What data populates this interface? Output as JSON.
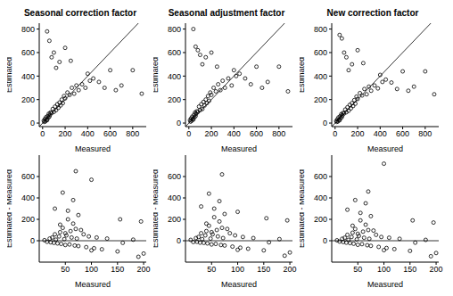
{
  "chart_data": [
    {
      "type": "scatter",
      "title": "Seasonal correction factor",
      "x_label": "Measured",
      "y_label": "Estimated",
      "x": [
        10,
        15,
        20,
        25,
        30,
        35,
        40,
        45,
        50,
        55,
        60,
        65,
        70,
        80,
        90,
        100,
        110,
        120,
        130,
        140,
        150,
        160,
        170,
        180,
        190,
        200,
        220,
        240,
        260,
        280,
        300,
        320,
        350,
        380,
        400,
        420,
        450,
        500,
        550,
        600,
        650,
        700,
        800,
        880,
        40,
        60,
        80,
        100,
        120,
        150,
        200,
        250
      ],
      "values": [
        20,
        10,
        35,
        15,
        50,
        30,
        25,
        60,
        45,
        80,
        55,
        70,
        90,
        85,
        120,
        95,
        140,
        110,
        160,
        130,
        175,
        150,
        200,
        170,
        230,
        210,
        260,
        240,
        300,
        250,
        320,
        280,
        330,
        300,
        420,
        360,
        380,
        350,
        300,
        450,
        280,
        320,
        450,
        250,
        780,
        700,
        560,
        600,
        470,
        520,
        640,
        530
      ],
      "xlim": [
        -30,
        920
      ],
      "ylim": [
        -30,
        850
      ],
      "xticks": [
        0,
        200,
        400,
        600,
        800
      ],
      "yticks": [
        0,
        200,
        400,
        600,
        800
      ],
      "color": "#000000",
      "marker": "open_circle",
      "grid": false
    },
    {
      "type": "scatter",
      "title": "Seasonal adjustment factor",
      "x_label": "Measured",
      "y_label": "Estimated",
      "x": [
        10,
        15,
        20,
        25,
        30,
        35,
        40,
        45,
        50,
        55,
        60,
        65,
        70,
        80,
        90,
        100,
        110,
        120,
        130,
        140,
        150,
        160,
        170,
        180,
        190,
        200,
        220,
        240,
        260,
        280,
        300,
        320,
        350,
        380,
        400,
        420,
        450,
        500,
        550,
        600,
        650,
        700,
        800,
        880,
        40,
        60,
        80,
        100,
        120,
        150,
        200,
        250
      ],
      "values": [
        25,
        12,
        40,
        20,
        55,
        35,
        30,
        70,
        50,
        90,
        60,
        80,
        100,
        95,
        140,
        110,
        160,
        120,
        180,
        150,
        200,
        170,
        230,
        190,
        260,
        240,
        300,
        270,
        330,
        280,
        360,
        300,
        380,
        320,
        450,
        400,
        420,
        380,
        330,
        480,
        300,
        350,
        480,
        270,
        800,
        650,
        620,
        580,
        500,
        560,
        600,
        480
      ],
      "xlim": [
        -30,
        920
      ],
      "ylim": [
        -30,
        850
      ],
      "xticks": [
        0,
        200,
        400,
        600,
        800
      ],
      "yticks": [
        0,
        200,
        400,
        600,
        800
      ],
      "color": "#000000",
      "marker": "open_circle",
      "grid": false
    },
    {
      "type": "scatter",
      "title": "New correction factor",
      "x_label": "Measured",
      "y_label": "Estimated",
      "x": [
        10,
        15,
        20,
        25,
        30,
        35,
        40,
        45,
        50,
        55,
        60,
        65,
        70,
        80,
        90,
        100,
        110,
        120,
        130,
        140,
        150,
        160,
        170,
        180,
        190,
        200,
        220,
        240,
        260,
        280,
        300,
        320,
        350,
        380,
        400,
        420,
        450,
        500,
        550,
        600,
        650,
        700,
        800,
        880,
        40,
        60,
        80,
        100,
        120,
        150,
        200,
        250
      ],
      "values": [
        18,
        10,
        32,
        14,
        48,
        28,
        24,
        58,
        42,
        76,
        52,
        66,
        86,
        82,
        115,
        92,
        135,
        105,
        155,
        125,
        170,
        145,
        195,
        165,
        225,
        205,
        255,
        235,
        290,
        245,
        310,
        275,
        320,
        295,
        410,
        350,
        370,
        345,
        290,
        440,
        275,
        310,
        440,
        245,
        750,
        720,
        600,
        560,
        450,
        500,
        620,
        510
      ],
      "xlim": [
        -30,
        920
      ],
      "ylim": [
        -30,
        850
      ],
      "xticks": [
        0,
        200,
        400,
        600,
        800
      ],
      "yticks": [
        0,
        200,
        400,
        600,
        800
      ],
      "color": "#000000",
      "marker": "open_circle",
      "grid": false
    },
    {
      "type": "scatter",
      "x_label": "Measured",
      "y_label": "Estimated - Measured",
      "x": [
        10,
        15,
        20,
        22,
        25,
        28,
        30,
        32,
        35,
        38,
        40,
        42,
        45,
        48,
        50,
        52,
        55,
        58,
        60,
        62,
        65,
        68,
        70,
        72,
        75,
        80,
        85,
        90,
        95,
        100,
        105,
        110,
        120,
        130,
        150,
        155,
        160,
        180,
        190,
        195,
        200,
        45,
        55,
        65,
        70,
        75,
        100,
        30,
        40,
        50
      ],
      "values": [
        5,
        -10,
        20,
        -15,
        30,
        -20,
        60,
        10,
        -25,
        40,
        80,
        -30,
        120,
        15,
        -40,
        50,
        200,
        -35,
        90,
        30,
        160,
        -45,
        650,
        20,
        -50,
        100,
        60,
        -60,
        40,
        570,
        -70,
        30,
        -80,
        20,
        -100,
        200,
        -20,
        10,
        -150,
        180,
        -120,
        450,
        280,
        380,
        110,
        240,
        -90,
        300,
        150,
        70
      ],
      "xlim": [
        0,
        205
      ],
      "ylim": [
        -200,
        800
      ],
      "xticks": [
        50,
        100,
        150,
        200
      ],
      "yticks": [
        0,
        200,
        400,
        600
      ],
      "color": "#000000",
      "marker": "open_circle",
      "grid": false
    },
    {
      "type": "scatter",
      "x_label": "Measured",
      "y_label": "Estimated - Measured",
      "x": [
        10,
        15,
        20,
        22,
        25,
        28,
        30,
        32,
        35,
        38,
        40,
        42,
        45,
        48,
        50,
        52,
        55,
        58,
        60,
        62,
        65,
        68,
        70,
        72,
        75,
        80,
        85,
        90,
        95,
        100,
        105,
        110,
        120,
        130,
        150,
        155,
        160,
        180,
        190,
        195,
        200,
        45,
        55,
        65,
        70,
        75,
        100,
        30,
        40,
        50
      ],
      "values": [
        8,
        -12,
        25,
        -10,
        35,
        -18,
        70,
        15,
        -20,
        50,
        90,
        -25,
        140,
        20,
        -35,
        60,
        220,
        -30,
        100,
        40,
        180,
        -40,
        620,
        25,
        -45,
        110,
        70,
        -55,
        50,
        270,
        -65,
        35,
        -75,
        25,
        -90,
        210,
        -15,
        15,
        -140,
        190,
        -110,
        440,
        300,
        370,
        120,
        250,
        -85,
        320,
        160,
        80
      ],
      "xlim": [
        0,
        205
      ],
      "ylim": [
        -200,
        800
      ],
      "xticks": [
        50,
        100,
        150,
        200
      ],
      "yticks": [
        0,
        200,
        400,
        600
      ],
      "color": "#000000",
      "marker": "open_circle",
      "grid": false
    },
    {
      "type": "scatter",
      "x_label": "Measured",
      "y_label": "Estimated - Measured",
      "x": [
        10,
        15,
        20,
        22,
        25,
        28,
        30,
        32,
        35,
        38,
        40,
        42,
        45,
        48,
        50,
        52,
        55,
        58,
        60,
        62,
        65,
        68,
        70,
        72,
        75,
        80,
        85,
        90,
        95,
        100,
        105,
        110,
        120,
        130,
        150,
        155,
        160,
        180,
        190,
        195,
        200,
        45,
        55,
        65,
        70,
        75,
        100,
        30,
        40,
        50
      ],
      "values": [
        4,
        -8,
        18,
        -12,
        28,
        -18,
        55,
        8,
        -22,
        35,
        75,
        -28,
        110,
        12,
        -38,
        45,
        190,
        -32,
        85,
        28,
        150,
        -42,
        460,
        18,
        -48,
        95,
        55,
        -58,
        35,
        720,
        -68,
        28,
        -78,
        18,
        -95,
        190,
        -18,
        8,
        -145,
        170,
        -115,
        380,
        260,
        350,
        100,
        230,
        -88,
        290,
        140,
        65
      ],
      "xlim": [
        0,
        205
      ],
      "ylim": [
        -200,
        800
      ],
      "xticks": [
        50,
        100,
        150,
        200
      ],
      "yticks": [
        0,
        200,
        400,
        600
      ],
      "color": "#000000",
      "marker": "open_circle",
      "grid": false
    }
  ]
}
